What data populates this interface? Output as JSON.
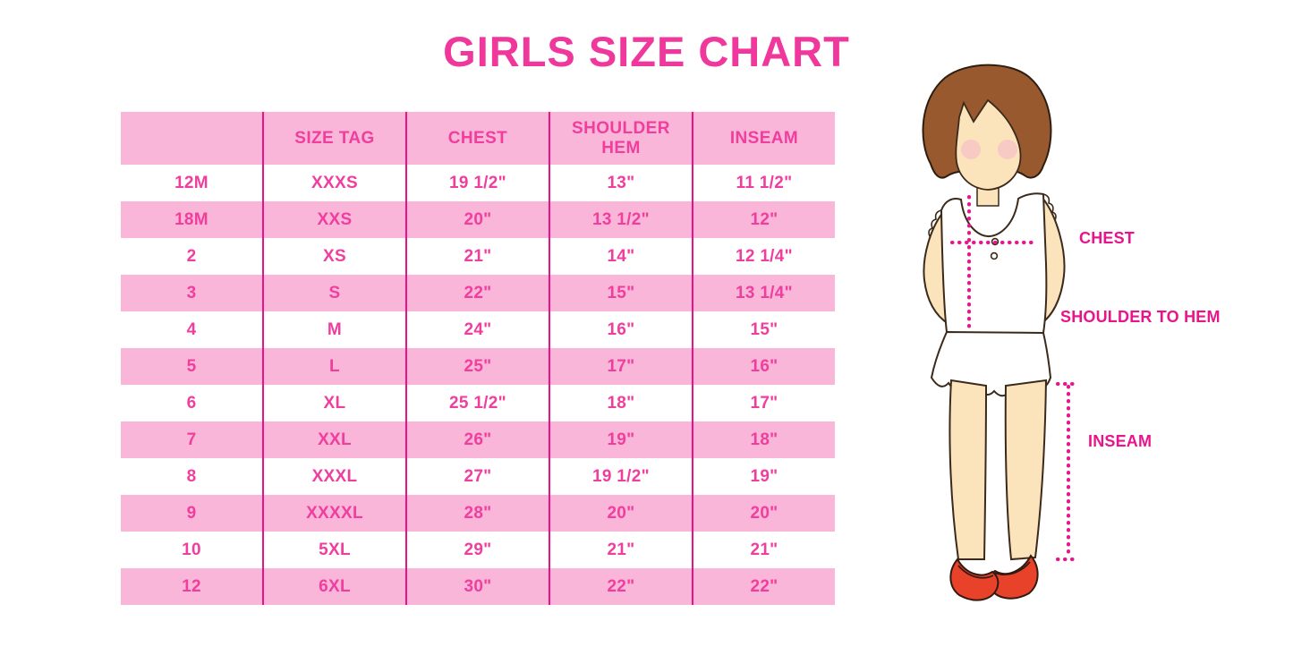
{
  "title": "GIRLS SIZE CHART",
  "chart_data": {
    "type": "table",
    "title": "GIRLS SIZE CHART",
    "columns": [
      "",
      "SIZE TAG",
      "CHEST",
      "SHOULDER HEM",
      "INSEAM"
    ],
    "rows": [
      [
        "12M",
        "XXXS",
        "19 1/2\"",
        "13\"",
        "11 1/2\""
      ],
      [
        "18M",
        "XXS",
        "20\"",
        "13 1/2\"",
        "12\""
      ],
      [
        "2",
        "XS",
        "21\"",
        "14\"",
        "12 1/4\""
      ],
      [
        "3",
        "S",
        "22\"",
        "15\"",
        "13 1/4\""
      ],
      [
        "4",
        "M",
        "24\"",
        "16\"",
        "15\""
      ],
      [
        "5",
        "L",
        "25\"",
        "17\"",
        "16\""
      ],
      [
        "6",
        "XL",
        "25 1/2\"",
        "18\"",
        "17\""
      ],
      [
        "7",
        "XXL",
        "26\"",
        "19\"",
        "18\""
      ],
      [
        "8",
        "XXXL",
        "27\"",
        "19 1/2\"",
        "19\""
      ],
      [
        "9",
        "XXXXL",
        "28\"",
        "20\"",
        "20\""
      ],
      [
        "10",
        "5XL",
        "29\"",
        "21\"",
        "21\""
      ],
      [
        "12",
        "6XL",
        "30\"",
        "22\"",
        "22\""
      ]
    ],
    "layout": {
      "header_background": "#F9B6D8",
      "alternating_row_background": [
        "#FFFFFF",
        "#F9B6D8"
      ],
      "grid_lines": "vertical-only"
    }
  },
  "figure": {
    "labels": {
      "chest": "CHEST",
      "shoulder_to_hem": "SHOULDER TO HEM",
      "inseam": "INSEAM"
    }
  },
  "colors": {
    "title_pink": "#F0379B",
    "table_text_pink": "#F03E9E",
    "row_pink": "#F9B6D8",
    "grid_magenta": "#E8128C",
    "label_magenta": "#E9148C",
    "hair_brown": "#99592F",
    "skin": "#FBE3BC",
    "shoe_red": "#E8432A"
  }
}
